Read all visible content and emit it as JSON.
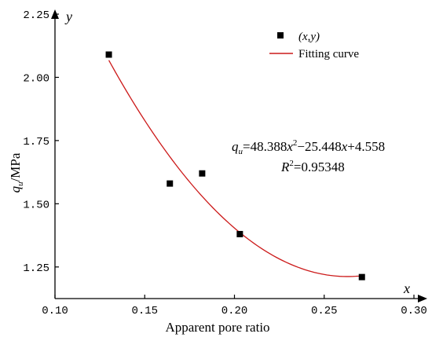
{
  "chart_data": {
    "type": "scatter",
    "xlabel": "Apparent pore ratio",
    "ylabel": "q_u/MPa",
    "axis_arrow_x": "x",
    "axis_arrow_y": "y",
    "xlim": [
      0.1,
      0.3
    ],
    "ylim": [
      1.125,
      2.25
    ],
    "xticks": [
      "0.10",
      "0.15",
      "0.20",
      "0.25",
      "0.30"
    ],
    "xtick_values": [
      0.1,
      0.15,
      0.2,
      0.25,
      0.3
    ],
    "yticks": [
      "1.25",
      "1.50",
      "1.75",
      "2.00",
      "2.25"
    ],
    "ytick_values": [
      1.25,
      1.5,
      1.75,
      2.0,
      2.25
    ],
    "grid": false,
    "legend_position": "top-right",
    "series": [
      {
        "name": "(x,y)",
        "kind": "scatter",
        "marker": "square",
        "color": "#000000",
        "points": [
          {
            "x": 0.13,
            "y": 2.09
          },
          {
            "x": 0.164,
            "y": 1.58
          },
          {
            "x": 0.182,
            "y": 1.62
          },
          {
            "x": 0.203,
            "y": 1.38
          },
          {
            "x": 0.271,
            "y": 1.21
          }
        ]
      },
      {
        "name": "Fitting curve",
        "kind": "line",
        "color": "#cc1a1a",
        "equation": {
          "a": 48.388,
          "b": -25.448,
          "c": 4.558
        },
        "x_range": [
          0.13,
          0.271
        ]
      }
    ],
    "annotations": {
      "equation_parts": [
        "q",
        "u",
        "=48.388",
        "x",
        "2",
        "−25.448",
        "x",
        "+4.558"
      ],
      "r2_parts": [
        "R",
        "2",
        "=0.95348"
      ]
    }
  }
}
